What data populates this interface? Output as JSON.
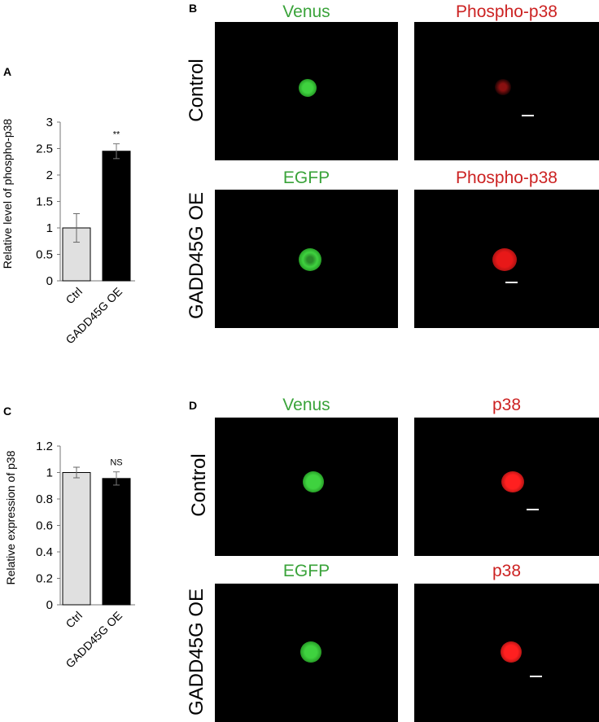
{
  "panels": {
    "a": {
      "letter": "A"
    },
    "b": {
      "letter": "B"
    },
    "c": {
      "letter": "C"
    },
    "d": {
      "letter": "D"
    }
  },
  "chart_data": [
    {
      "type": "bar",
      "panel": "A",
      "ylabel": "Relative level of  phospho-p38",
      "categories": [
        "Ctrl",
        "GADD45G OE"
      ],
      "values": [
        1.0,
        2.45
      ],
      "errors": [
        0.27,
        0.14
      ],
      "ylim": [
        0,
        3
      ],
      "yticks": [
        "0",
        "0.5",
        "1",
        "1.5",
        "2",
        "2.5",
        "3"
      ],
      "yticks_values": [
        0,
        0.5,
        1,
        1.5,
        2,
        2.5,
        3
      ],
      "annotation": "**",
      "colors": [
        "#e0e0e0",
        "#000000"
      ]
    },
    {
      "type": "bar",
      "panel": "C",
      "ylabel": "Relative expression of p38",
      "categories": [
        "Ctrl",
        "GADD45G OE"
      ],
      "values": [
        1.0,
        0.955
      ],
      "errors": [
        0.04,
        0.05
      ],
      "ylim": [
        0,
        1.2
      ],
      "yticks": [
        "0",
        "0.2",
        "0.4",
        "0.6",
        "0.8",
        "1",
        "1.2"
      ],
      "yticks_values": [
        0,
        0.2,
        0.4,
        0.6,
        0.8,
        1,
        1.2
      ],
      "annotation": "NS",
      "colors": [
        "#e0e0e0",
        "#000000"
      ]
    }
  ],
  "micrographs": {
    "b": {
      "row1": {
        "label": "Control",
        "green_channel": "Venus",
        "red_channel": "Phospho-p38"
      },
      "row2": {
        "label": "GADD45G OE",
        "green_channel": "EGFP",
        "red_channel": "Phospho-p38"
      }
    },
    "d": {
      "row1": {
        "label": "Control",
        "green_channel": "Venus",
        "red_channel": "p38"
      },
      "row2": {
        "label": "GADD45G OE",
        "green_channel": "EGFP",
        "red_channel": "p38"
      }
    }
  },
  "colors": {
    "green_text": "#3aa33a",
    "red_text": "#cc2222",
    "cell_green": "#3fd23f",
    "cell_red": "#e81818"
  }
}
